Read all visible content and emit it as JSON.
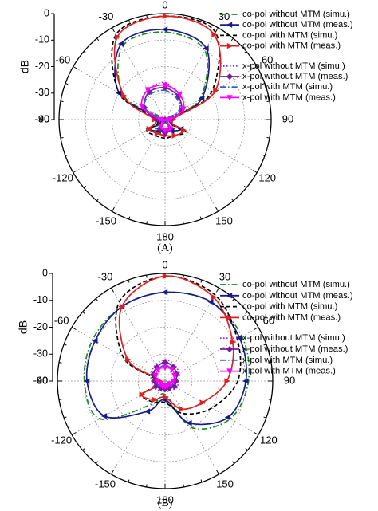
{
  "figure": {
    "panels": [
      {
        "caption": "(A)",
        "ylabel": "dB",
        "radial_ticks": [
          "0",
          "-10",
          "-20",
          "-30",
          "-40"
        ],
        "angle_labels": [
          "0",
          "30",
          "60",
          "90",
          "120",
          "150",
          "180",
          "-150",
          "-120",
          "-90",
          "-60",
          "-30"
        ],
        "legend": [
          "co-pol without MTM (simu.)",
          "co-pol without MTM (meas.)",
          "co-pol with MTM (simu.)",
          "co-pol with MTM (meas.)",
          "x-pol without MTM (simu.)",
          "x-pol without MTM (meas.)",
          "x-pol with MTM (simu.)",
          "x-pol with MTM (meas.)"
        ]
      },
      {
        "caption": "(B)",
        "ylabel": "dB",
        "radial_ticks": [
          "0",
          "-10",
          "-20",
          "-30",
          "-40"
        ],
        "angle_labels": [
          "0",
          "30",
          "60",
          "90",
          "120",
          "150",
          "180",
          "-150",
          "-120",
          "-90",
          "-60",
          "-30"
        ],
        "legend": [
          "co-pol without MTM (simu.)",
          "co-pol without MTM (meas.)",
          "co-pol with MTM (simu.)",
          "co-pol with MTM (meas.)",
          "x-pol without MTM (simu.)",
          "x-pol without MTM (meas.)",
          "x-pol with MTM (simu.)",
          "x-pol with MTM (meas.)"
        ]
      }
    ]
  },
  "chart_data": [
    {
      "type": "polar",
      "caption": "(A)",
      "r_axis_label": "dB",
      "r_range": [
        -40,
        0
      ],
      "r_ticks": [
        0,
        -10,
        -20,
        -30,
        -40
      ],
      "angle_ticks_deg": [
        0,
        30,
        60,
        90,
        120,
        150,
        180,
        -150,
        -120,
        -90,
        -60,
        -30
      ],
      "grid": true,
      "legend_position": "top-right",
      "angles_deg": [
        0,
        30,
        60,
        90,
        120,
        150,
        180,
        -150,
        -120,
        -90,
        -60,
        -30
      ],
      "series": [
        {
          "name": "co-pol without MTM (simu.)",
          "color": "#1a8a1a",
          "dash": "dashdot",
          "marker": "none",
          "values": [
            -7,
            -10,
            -25,
            -40,
            -34,
            -36,
            -37,
            -36,
            -34,
            -40,
            -22,
            -8
          ]
        },
        {
          "name": "co-pol without MTM (meas.)",
          "color": "#1a1a8c",
          "dash": "solid",
          "marker": "tri-left",
          "values": [
            -6,
            -9,
            -24,
            -38,
            -33,
            -35,
            -36,
            -35,
            -33,
            -38,
            -20,
            -7
          ]
        },
        {
          "name": "co-pol with MTM (simu.)",
          "color": "#000000",
          "dash": "dash",
          "marker": "none",
          "values": [
            -1,
            -2,
            -20,
            -38,
            -31,
            -33,
            -33,
            -33,
            -32,
            -37,
            -20,
            -3
          ]
        },
        {
          "name": "co-pol with MTM (meas.)",
          "color": "#e02020",
          "dash": "solid",
          "marker": "tri-right",
          "values": [
            -1,
            -3,
            -18,
            -37,
            -32,
            -33,
            -34,
            -34,
            -33,
            -36,
            -22,
            -4
          ]
        },
        {
          "name": "x-pol without MTM (simu.)",
          "color": "#8a2be2",
          "dash": "dot",
          "marker": "none",
          "values": [
            -26,
            -30,
            -34,
            -40,
            -40,
            -38,
            -36,
            -38,
            -40,
            -40,
            -30,
            -27
          ]
        },
        {
          "name": "x-pol without MTM (meas.)",
          "color": "#7a1a9a",
          "dash": "solid",
          "marker": "diamond",
          "values": [
            -28,
            -30,
            -33,
            -38,
            -40,
            -36,
            -35,
            -36,
            -40,
            -37,
            -31,
            -28
          ]
        },
        {
          "name": "x-pol with MTM (simu.)",
          "color": "#3060d0",
          "dash": "dashdot",
          "marker": "none",
          "values": [
            -29,
            -31,
            -34,
            -40,
            -40,
            -37,
            -36,
            -37,
            -40,
            -39,
            -31,
            -29
          ]
        },
        {
          "name": "x-pol with MTM (meas.)",
          "color": "#ff00ff",
          "dash": "solid",
          "marker": "tri-down",
          "values": [
            -27,
            -29,
            -32,
            -38,
            -39,
            -36,
            -36,
            -37,
            -39,
            -38,
            -30,
            -27
          ]
        }
      ]
    },
    {
      "type": "polar",
      "caption": "(B)",
      "r_axis_label": "dB",
      "r_range": [
        -40,
        0
      ],
      "r_ticks": [
        0,
        -10,
        -20,
        -30,
        -40
      ],
      "angle_ticks_deg": [
        0,
        30,
        60,
        90,
        120,
        150,
        180,
        -150,
        -120,
        -90,
        -60,
        -30
      ],
      "grid": true,
      "legend_position": "top-right",
      "angles_deg": [
        0,
        30,
        60,
        90,
        120,
        150,
        180,
        -150,
        -120,
        -90,
        -60,
        -30
      ],
      "series": [
        {
          "name": "co-pol without MTM (simu.)",
          "color": "#1a8a1a",
          "dash": "dashdot",
          "marker": "none",
          "values": [
            -7,
            -6,
            -7,
            -9,
            -12,
            -20,
            -35,
            -30,
            -12,
            -10,
            -9,
            -8
          ]
        },
        {
          "name": "co-pol without MTM (meas.)",
          "color": "#1a1a8c",
          "dash": "solid",
          "marker": "tri-left",
          "values": [
            -7,
            -6,
            -8,
            -10,
            -13,
            -22,
            -33,
            -27,
            -14,
            -11,
            -10,
            -8
          ]
        },
        {
          "name": "co-pol with MTM (simu.)",
          "color": "#000000",
          "dash": "dash",
          "marker": "none",
          "values": [
            -1,
            -3,
            -9,
            -13,
            -20,
            -26,
            -32,
            -31,
            -30,
            -37,
            -22,
            -6
          ]
        },
        {
          "name": "co-pol with MTM (meas.)",
          "color": "#e02020",
          "dash": "solid",
          "marker": "tri-right",
          "values": [
            -1,
            -4,
            -11,
            -17,
            -24,
            -28,
            -34,
            -32,
            -30,
            -38,
            -24,
            -8
          ]
        },
        {
          "name": "x-pol without MTM (simu.)",
          "color": "#8a2be2",
          "dash": "dot",
          "marker": "none",
          "values": [
            -32,
            -33,
            -34,
            -35,
            -35,
            -36,
            -36,
            -36,
            -35,
            -35,
            -34,
            -33
          ]
        },
        {
          "name": "x-pol without MTM (meas.)",
          "color": "#7a1a9a",
          "dash": "solid",
          "marker": "diamond",
          "values": [
            -33,
            -34,
            -35,
            -36,
            -36,
            -37,
            -37,
            -37,
            -36,
            -36,
            -35,
            -34
          ]
        },
        {
          "name": "x-pol with MTM (simu.)",
          "color": "#3060d0",
          "dash": "dashdot",
          "marker": "none",
          "values": [
            -34,
            -35,
            -36,
            -37,
            -37,
            -38,
            -38,
            -38,
            -37,
            -37,
            -36,
            -35
          ]
        },
        {
          "name": "x-pol with MTM (meas.)",
          "color": "#ff00ff",
          "dash": "solid",
          "marker": "tri-down",
          "values": [
            -35,
            -35,
            -36,
            -37,
            -38,
            -38,
            -38,
            -38,
            -38,
            -37,
            -36,
            -35
          ]
        }
      ]
    }
  ]
}
